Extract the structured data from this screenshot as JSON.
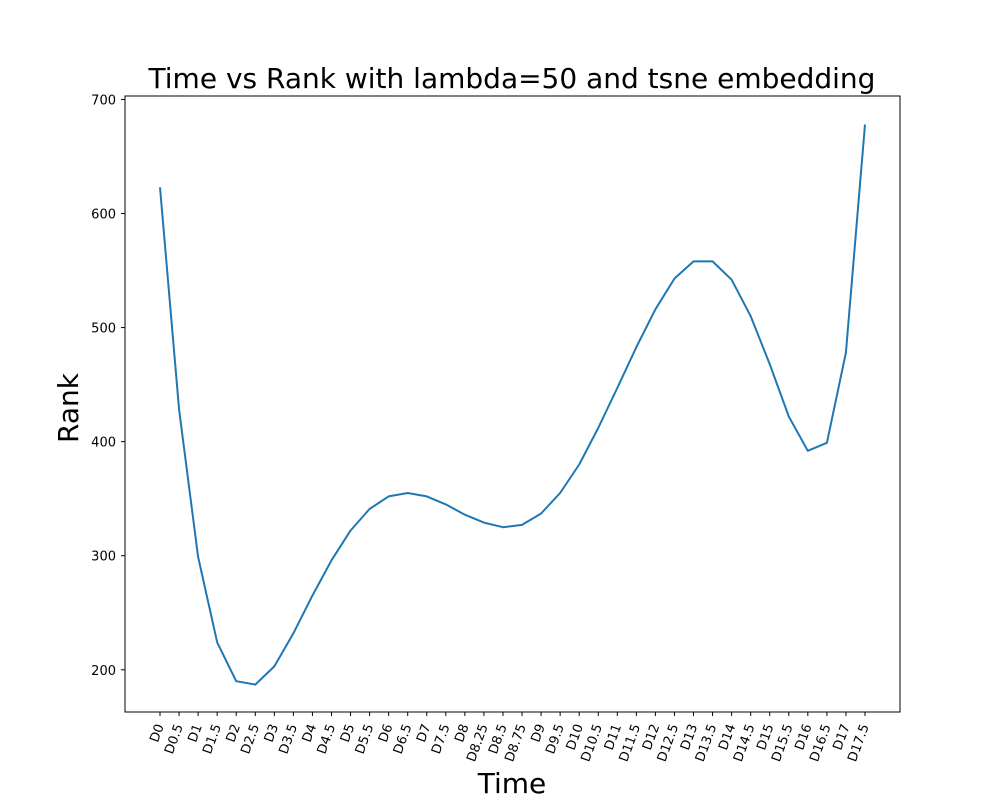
{
  "chart_data": {
    "type": "line",
    "title": "Time vs Rank with lambda=50 and tsne embedding",
    "xlabel": "Time",
    "ylabel": "Rank",
    "categories": [
      "D0",
      "D0.5",
      "D1",
      "D1.5",
      "D2",
      "D2.5",
      "D3",
      "D3.5",
      "D4",
      "D4.5",
      "D5",
      "D5.5",
      "D6",
      "D6.5",
      "D7",
      "D7.5",
      "D8",
      "D8.25",
      "D8.5",
      "D8.75",
      "D9",
      "D9.5",
      "D10",
      "D10.5",
      "D11",
      "D11.5",
      "D12",
      "D12.5",
      "D13",
      "D13.5",
      "D14",
      "D14.5",
      "D15",
      "D15.5",
      "D16",
      "D16.5",
      "D17",
      "D17.5"
    ],
    "series": [
      {
        "color": "#1f77b4",
        "values": [
          623,
          428,
          299,
          224,
          190,
          187,
          203,
          232,
          265,
          296,
          322,
          341,
          352,
          355,
          352,
          345,
          336,
          329,
          325,
          327,
          337,
          355,
          380,
          412,
          447,
          483,
          516,
          543,
          558,
          558,
          542,
          510,
          468,
          422,
          392,
          399,
          478,
          678
        ]
      }
    ],
    "ylim": [
      163,
      703
    ],
    "yticks": [
      200,
      300,
      400,
      500,
      600,
      700
    ],
    "grid": false,
    "legend": "none"
  }
}
